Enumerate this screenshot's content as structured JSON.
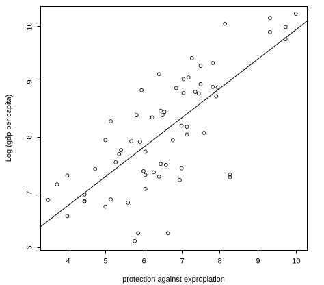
{
  "chart_data": {
    "type": "scatter",
    "title": "",
    "xlabel": "protection against expropiation",
    "ylabel": "Log (gdp per capita)",
    "xlim": [
      3.3,
      10.3
    ],
    "ylim": [
      5.95,
      10.35
    ],
    "x_ticks": [
      4,
      5,
      6,
      7,
      8,
      9,
      10
    ],
    "y_ticks": [
      6,
      7,
      8,
      9,
      10
    ],
    "grid": false,
    "legend": "none",
    "point_style": "open-circle",
    "series": [
      {
        "points": [
          [
            3.5,
            6.86
          ],
          [
            3.73,
            7.14
          ],
          [
            4.0,
            7.3
          ],
          [
            4.0,
            6.57
          ],
          [
            4.45,
            6.96
          ],
          [
            4.45,
            6.84
          ],
          [
            4.45,
            6.83
          ],
          [
            4.73,
            7.42
          ],
          [
            5.0,
            7.94
          ],
          [
            5.0,
            6.74
          ],
          [
            5.14,
            8.28
          ],
          [
            5.14,
            6.87
          ],
          [
            5.27,
            7.54
          ],
          [
            5.36,
            7.69
          ],
          [
            5.41,
            7.76
          ],
          [
            5.59,
            6.81
          ],
          [
            5.68,
            7.92
          ],
          [
            5.77,
            6.12
          ],
          [
            5.82,
            8.39
          ],
          [
            5.86,
            6.26
          ],
          [
            5.91,
            7.91
          ],
          [
            5.95,
            8.84
          ],
          [
            6.0,
            7.38
          ],
          [
            6.05,
            7.31
          ],
          [
            6.05,
            7.06
          ],
          [
            6.05,
            7.73
          ],
          [
            6.23,
            8.35
          ],
          [
            6.27,
            7.36
          ],
          [
            6.41,
            9.13
          ],
          [
            6.41,
            7.28
          ],
          [
            6.45,
            7.51
          ],
          [
            6.45,
            8.47
          ],
          [
            6.5,
            8.39
          ],
          [
            6.55,
            8.45
          ],
          [
            6.59,
            7.49
          ],
          [
            6.64,
            6.26
          ],
          [
            6.77,
            7.94
          ],
          [
            6.86,
            8.88
          ],
          [
            6.95,
            7.22
          ],
          [
            7.0,
            7.43
          ],
          [
            7.0,
            8.2
          ],
          [
            7.05,
            8.79
          ],
          [
            7.05,
            9.04
          ],
          [
            7.14,
            8.04
          ],
          [
            7.14,
            8.18
          ],
          [
            7.18,
            9.07
          ],
          [
            7.27,
            9.42
          ],
          [
            7.36,
            8.81
          ],
          [
            7.45,
            8.78
          ],
          [
            7.5,
            8.95
          ],
          [
            7.5,
            9.28
          ],
          [
            7.59,
            8.07
          ],
          [
            7.82,
            9.33
          ],
          [
            7.82,
            8.9
          ],
          [
            7.91,
            8.73
          ],
          [
            7.95,
            8.89
          ],
          [
            8.14,
            10.04
          ],
          [
            8.27,
            7.32
          ],
          [
            8.27,
            7.27
          ],
          [
            9.32,
            10.14
          ],
          [
            9.32,
            9.89
          ],
          [
            9.73,
            9.98
          ],
          [
            9.73,
            9.76
          ],
          [
            10.0,
            10.22
          ]
        ]
      }
    ],
    "fit_line": {
      "intercept": 4.63,
      "slope": 0.53
    }
  }
}
